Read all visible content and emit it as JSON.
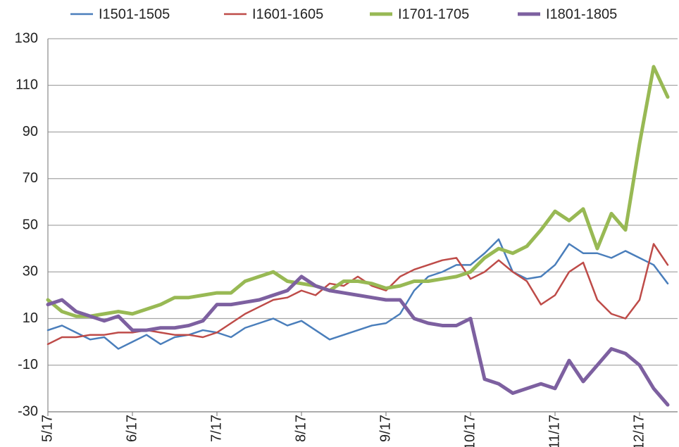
{
  "chart_data": {
    "type": "line",
    "categories": [
      "5/17",
      null,
      null,
      null,
      null,
      null,
      "6/17",
      null,
      null,
      null,
      null,
      null,
      "7/17",
      null,
      null,
      null,
      null,
      null,
      "8/17",
      null,
      null,
      null,
      null,
      null,
      "9/17",
      null,
      null,
      null,
      null,
      null,
      "10/17",
      null,
      null,
      null,
      null,
      null,
      "11/17",
      null,
      null,
      null,
      null,
      null,
      "12/17",
      null,
      null
    ],
    "series": [
      {
        "name": "I1501-1505",
        "color": "#4a7ebb",
        "values": [
          5,
          7,
          4,
          1,
          2,
          -3,
          0,
          3,
          -1,
          2,
          3,
          5,
          4,
          2,
          6,
          8,
          10,
          7,
          9,
          5,
          1,
          3,
          5,
          7,
          8,
          12,
          22,
          28,
          30,
          33,
          33,
          38,
          44,
          30,
          27,
          28,
          33,
          42,
          38,
          38,
          36,
          39,
          36,
          33,
          25
        ]
      },
      {
        "name": "I1601-1605",
        "color": "#be4b48",
        "values": [
          -1,
          2,
          2,
          3,
          3,
          4,
          4,
          5,
          4,
          3,
          3,
          2,
          4,
          8,
          12,
          15,
          18,
          19,
          22,
          20,
          25,
          24,
          28,
          24,
          22,
          28,
          31,
          33,
          35,
          36,
          27,
          30,
          35,
          30,
          26,
          16,
          20,
          30,
          34,
          18,
          12,
          10,
          18,
          42,
          33
        ]
      },
      {
        "name": "I1701-1705",
        "color": "#98b954",
        "values": [
          18,
          13,
          11,
          11,
          12,
          13,
          12,
          14,
          16,
          19,
          19,
          20,
          21,
          21,
          26,
          28,
          30,
          26,
          25,
          24,
          22,
          26,
          26,
          25,
          23,
          24,
          26,
          26,
          27,
          28,
          30,
          36,
          40,
          38,
          41,
          48,
          56,
          52,
          57,
          40,
          55,
          48,
          85,
          118,
          105
        ]
      },
      {
        "name": "I1801-1805",
        "color": "#7d60a0",
        "values": [
          16,
          18,
          13,
          11,
          9,
          11,
          5,
          5,
          6,
          6,
          7,
          9,
          16,
          16,
          17,
          18,
          20,
          22,
          28,
          24,
          22,
          21,
          20,
          19,
          18,
          18,
          10,
          8,
          7,
          7,
          10,
          -16,
          -18,
          -22,
          -20,
          -18,
          -20,
          -8,
          -17,
          -10,
          -3,
          -5,
          -10,
          -20,
          -27
        ]
      }
    ],
    "ylim": [
      -30,
      130
    ],
    "yticks": [
      -30,
      -10,
      10,
      30,
      50,
      70,
      90,
      110,
      130
    ],
    "grid": true
  }
}
